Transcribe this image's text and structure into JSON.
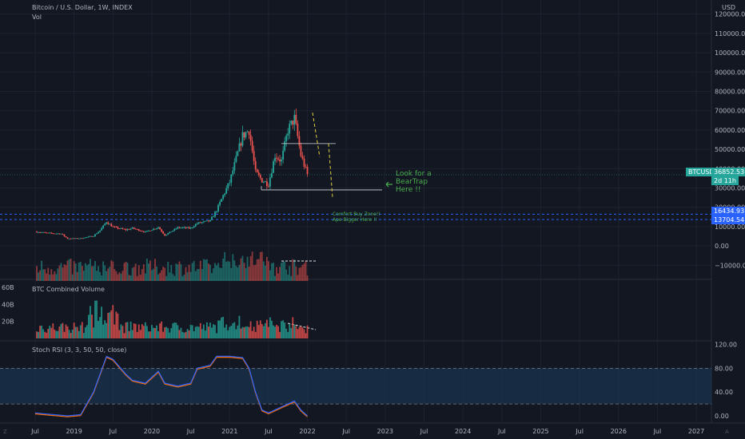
{
  "header": {
    "title": "Bitcoin / U.S. Dollar, 1W, INDEX",
    "vol_label": "Vol",
    "currency": "USD"
  },
  "colors": {
    "background": "#131722",
    "grid": "#1e2230",
    "text": "#b2b5be",
    "up": "#26a69a",
    "down": "#ef5350",
    "level_line": "#2962ff",
    "annotation_green": "#4caf50",
    "trend_yellow": "#e2d042",
    "rsi_k": "#2962ff",
    "rsi_d": "#ff6d00",
    "rsi_band": "#1a3550"
  },
  "annotations": {
    "beartrap": [
      "Look for a",
      "BearTrap",
      "Here !!"
    ],
    "comfort": [
      "Comfort Buy Zone!!",
      "Ape Bigger Here !!"
    ]
  },
  "price_tags": {
    "ticker": "BTCUSD",
    "last": "36852.53",
    "countdown": "2d 11h",
    "level_high": "16434.93",
    "level_low": "13704.54"
  },
  "chart_data": [
    {
      "type": "candlestick",
      "title": "Bitcoin / U.S. Dollar, 1W, INDEX",
      "x_ticks": [
        "Jul",
        "2019",
        "Jul",
        "2020",
        "Jul",
        "2021",
        "Jul",
        "2022",
        "Jul",
        "2023",
        "Jul",
        "2024",
        "Jul",
        "2025",
        "Jul",
        "2026",
        "Jul",
        "2027"
      ],
      "y_ticks": [
        "120000.00",
        "110000.00",
        "100000.00",
        "90000.00",
        "80000.00",
        "70000.00",
        "60000.00",
        "50000.00",
        "40000.00",
        "30000.00",
        "20000.00",
        "10000.00",
        "0.00",
        "−10000.00"
      ],
      "ylim": [
        -14000,
        124000
      ],
      "horizontal_levels": [
        16434.93,
        13704.54
      ],
      "close_series": [
        [
          "2018-07",
          7400
        ],
        [
          "2018-09",
          6600
        ],
        [
          "2018-11",
          6300
        ],
        [
          "2018-12",
          3800
        ],
        [
          "2019-02",
          3900
        ],
        [
          "2019-04",
          5200
        ],
        [
          "2019-05",
          8000
        ],
        [
          "2019-06",
          12500
        ],
        [
          "2019-07",
          9800
        ],
        [
          "2019-09",
          8300
        ],
        [
          "2019-10",
          9200
        ],
        [
          "2019-12",
          7200
        ],
        [
          "2020-02",
          9700
        ],
        [
          "2020-03",
          5500
        ],
        [
          "2020-05",
          9500
        ],
        [
          "2020-07",
          9200
        ],
        [
          "2020-08",
          11700
        ],
        [
          "2020-10",
          13000
        ],
        [
          "2020-11",
          18500
        ],
        [
          "2020-12",
          26000
        ],
        [
          "2021-01",
          33000
        ],
        [
          "2021-02",
          45000
        ],
        [
          "2021-03",
          57000
        ],
        [
          "2021-04",
          60000
        ],
        [
          "2021-05",
          38000
        ],
        [
          "2021-06",
          34000
        ],
        [
          "2021-07",
          32000
        ],
        [
          "2021-08",
          47000
        ],
        [
          "2021-09",
          44000
        ],
        [
          "2021-10",
          60000
        ],
        [
          "2021-11",
          66000
        ],
        [
          "2021-12",
          47000
        ],
        [
          "2022-01",
          36852.53
        ]
      ]
    },
    {
      "type": "bar",
      "title": "BTC Combined Volume",
      "y_ticks": [
        "60B",
        "40B",
        "20B"
      ],
      "ylim": [
        0,
        62
      ]
    },
    {
      "type": "line",
      "title": "Stoch RSI (3, 3, 50, 50, close)",
      "y_ticks": [
        "120.00",
        "80.00",
        "40.00",
        "0.00"
      ],
      "ylim": [
        -8,
        122
      ],
      "bands": [
        20,
        80
      ],
      "series": [
        {
          "values": [
            [
              "2018-07",
              5
            ],
            [
              "2018-09",
              3
            ],
            [
              "2018-12",
              0
            ],
            [
              "2019-02",
              2
            ],
            [
              "2019-04",
              40
            ],
            [
              "2019-06",
              100
            ],
            [
              "2019-07",
              95
            ],
            [
              "2019-09",
              70
            ],
            [
              "2019-10",
              60
            ],
            [
              "2019-12",
              55
            ],
            [
              "2020-02",
              75
            ],
            [
              "2020-03",
              55
            ],
            [
              "2020-05",
              50
            ],
            [
              "2020-07",
              55
            ],
            [
              "2020-08",
              80
            ],
            [
              "2020-10",
              85
            ],
            [
              "2020-11",
              100
            ],
            [
              "2021-01",
              100
            ],
            [
              "2021-03",
              98
            ],
            [
              "2021-04",
              80
            ],
            [
              "2021-05",
              40
            ],
            [
              "2021-06",
              10
            ],
            [
              "2021-07",
              5
            ],
            [
              "2021-09",
              15
            ],
            [
              "2021-10",
              20
            ],
            [
              "2021-11",
              25
            ],
            [
              "2021-12",
              10
            ],
            [
              "2022-01",
              0
            ]
          ]
        }
      ]
    }
  ]
}
